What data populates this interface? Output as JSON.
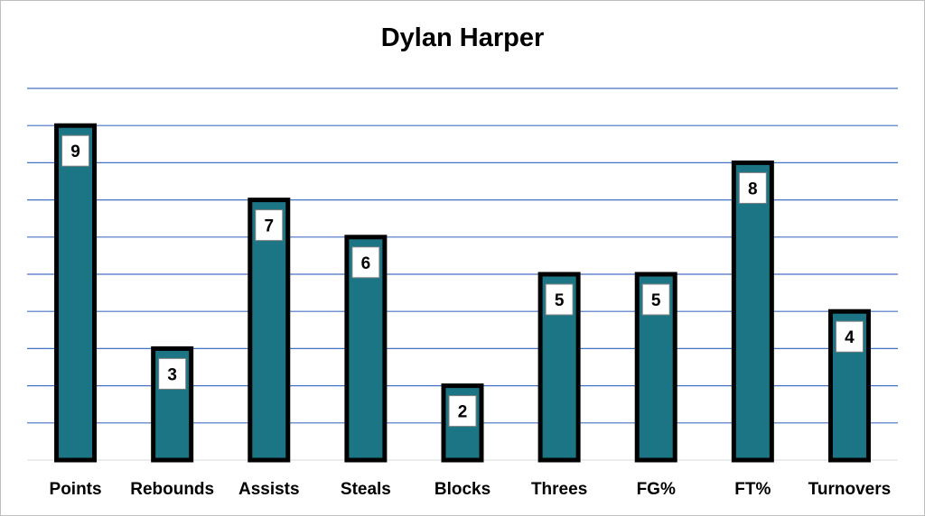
{
  "chart_data": {
    "type": "bar",
    "title": "Dylan Harper",
    "categories": [
      "Points",
      "Rebounds",
      "Assists",
      "Steals",
      "Blocks",
      "Threes",
      "FG%",
      "FT%",
      "Turnovers"
    ],
    "series": [
      {
        "values": [
          9,
          3,
          7,
          6,
          2,
          5,
          5,
          8,
          4
        ]
      }
    ],
    "xlabel": "",
    "ylabel": "",
    "ylim": [
      0,
      10
    ],
    "grid": true,
    "legend": "none",
    "data_labels": true,
    "colors": {
      "bar_fill": "#1c7585",
      "bar_outline": "#000000",
      "gridline": "#4472c4",
      "label_box": "#ffffff"
    }
  }
}
